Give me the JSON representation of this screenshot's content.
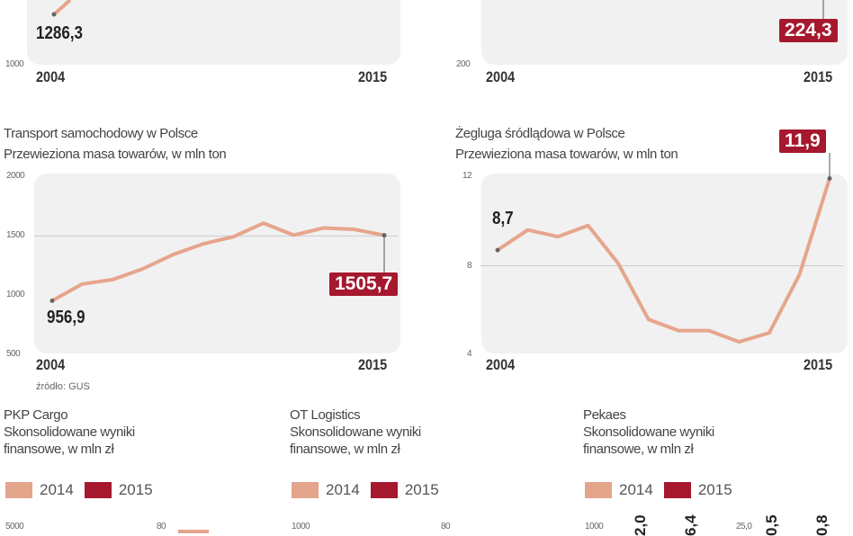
{
  "colors": {
    "line": "#e6a58c",
    "highlight": "#a5182e",
    "swatch_2014": "#e3a58c",
    "swatch_2015": "#a5182e",
    "panel": "#f1f1f1"
  },
  "top_left": {
    "start_label": "1286,3",
    "ymin_tick": "1000",
    "x_start": "2004",
    "x_end": "2015"
  },
  "top_right": {
    "end_label": "224,3",
    "ymin_tick": "200",
    "x_start": "2004",
    "x_end": "2015"
  },
  "chart_data": [
    {
      "type": "line",
      "title": "Transport samochodowy w Polsce",
      "subtitle": "Przewieziona masa towarów, w mln ton",
      "x": [
        2004,
        2005,
        2006,
        2007,
        2008,
        2009,
        2010,
        2011,
        2012,
        2013,
        2014,
        2015
      ],
      "values": [
        956.9,
        1097,
        1134,
        1224,
        1343,
        1433,
        1493,
        1607,
        1507,
        1567,
        1555,
        1505.7
      ],
      "ylim": [
        500,
        2000
      ],
      "yticks": [
        "500",
        "1000",
        "1500",
        "2000"
      ],
      "x_start": "2004",
      "x_end": "2015",
      "start_label": "956,9",
      "end_label": "1505,7",
      "source": "źródło: GUS",
      "grid": "1500 line"
    },
    {
      "type": "line",
      "title": "Żegluga śródlądowa w Polsce",
      "subtitle": "Przewieziona masa towarów, w mln ton",
      "x": [
        2004,
        2005,
        2006,
        2007,
        2008,
        2009,
        2010,
        2011,
        2012,
        2013,
        2014,
        2015
      ],
      "values": [
        8.7,
        9.6,
        9.3,
        9.8,
        8.1,
        5.6,
        5.1,
        5.1,
        4.6,
        5.0,
        7.6,
        11.9
      ],
      "ylim": [
        4,
        12
      ],
      "yticks": [
        "4",
        "8",
        "12"
      ],
      "x_start": "2004",
      "x_end": "2015",
      "start_label": "8,7",
      "end_label": "11,9",
      "grid": "8 line"
    }
  ],
  "bottom": [
    {
      "company": "PKP Cargo",
      "subtitle1": "Skonsolidowane wyniki",
      "subtitle2": "finansowe, w mln zł",
      "legend": [
        "2014",
        "2015"
      ],
      "ticks": [
        "5000",
        "80"
      ]
    },
    {
      "company": "OT Logistics",
      "subtitle1": "Skonsolidowane wyniki",
      "subtitle2": "finansowe, w mln zł",
      "legend": [
        "2014",
        "2015"
      ],
      "ticks": [
        "1000",
        "80"
      ]
    },
    {
      "company": "Pekaes",
      "subtitle1": "Skonsolidowane wyniki",
      "subtitle2": "finansowe, w mln zł",
      "legend": [
        "2014",
        "2015"
      ],
      "ticks": [
        "1000",
        "25,0"
      ],
      "values": [
        "2,0",
        "6,4",
        "0,5",
        "0,8"
      ]
    }
  ]
}
